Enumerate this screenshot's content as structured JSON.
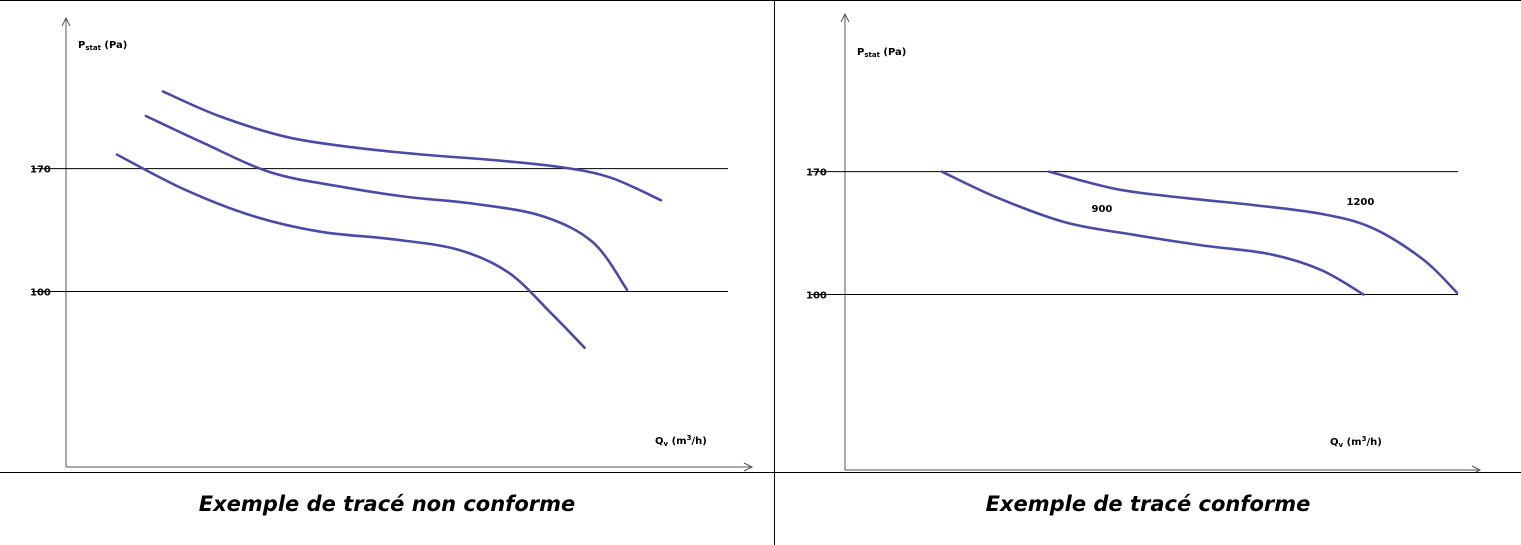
{
  "chart_data": [
    {
      "type": "line",
      "caption": "Exemple de tracé non conforme",
      "ylabel_main": "P",
      "ylabel_sub": "stat",
      "ylabel_unit": " (Pa)",
      "xlabel_main": "Q",
      "xlabel_sub": "v",
      "xlabel_unit_pre": " (m",
      "xlabel_unit_sup": "3",
      "xlabel_unit_post": "/h)",
      "reference_lines": [
        {
          "value": 170,
          "label": "170"
        },
        {
          "value": 100,
          "label": "100"
        }
      ],
      "series": [
        {
          "values": [
            [
              0.57,
              214
            ],
            [
              0.9,
              200
            ],
            [
              1.3,
              188
            ],
            [
              1.7,
              182
            ],
            [
              2.1,
              178
            ],
            [
              2.5,
              175
            ],
            [
              2.9,
              171
            ],
            [
              3.2,
              165
            ],
            [
              3.5,
              152
            ]
          ]
        },
        {
          "values": [
            [
              0.47,
              200
            ],
            [
              0.8,
              185
            ],
            [
              1.2,
              168
            ],
            [
              1.6,
              160
            ],
            [
              2.0,
              154
            ],
            [
              2.4,
              150
            ],
            [
              2.8,
              143
            ],
            [
              3.1,
              128
            ],
            [
              3.3,
              101
            ]
          ]
        },
        {
          "values": [
            [
              0.3,
              178
            ],
            [
              0.7,
              158
            ],
            [
              1.1,
              143
            ],
            [
              1.5,
              134
            ],
            [
              1.9,
              130
            ],
            [
              2.3,
              124
            ],
            [
              2.6,
              111
            ],
            [
              2.85,
              88
            ],
            [
              3.05,
              68
            ]
          ]
        }
      ],
      "series_labels": [],
      "color": "#4a4ba8"
    },
    {
      "type": "line",
      "caption": "Exemple de tracé conforme",
      "ylabel_main": "P",
      "ylabel_sub": "stat",
      "ylabel_unit": " (Pa)",
      "xlabel_main": "Q",
      "xlabel_sub": "v",
      "xlabel_unit_pre": " (m",
      "xlabel_unit_sup": "3",
      "xlabel_unit_post": "/h)",
      "reference_lines": [
        {
          "value": 170,
          "label": "170"
        },
        {
          "value": 100,
          "label": "100"
        }
      ],
      "series": [
        {
          "name": "900",
          "values": [
            [
              0.57,
              170
            ],
            [
              0.9,
              155
            ],
            [
              1.3,
              141
            ],
            [
              1.7,
              134
            ],
            [
              2.1,
              128
            ],
            [
              2.5,
              123
            ],
            [
              2.8,
              114
            ],
            [
              3.05,
              100
            ]
          ]
        },
        {
          "name": "1200",
          "values": [
            [
              1.2,
              170
            ],
            [
              1.6,
              160
            ],
            [
              2.0,
              155
            ],
            [
              2.4,
              151
            ],
            [
              2.8,
              146
            ],
            [
              3.1,
              138
            ],
            [
              3.4,
              120
            ],
            [
              3.6,
              101
            ]
          ]
        }
      ],
      "series_labels": [
        {
          "text": "900",
          "at": [
            1.45,
            147
          ]
        },
        {
          "text": "1200",
          "at": [
            2.95,
            151
          ]
        }
      ],
      "color": "#4a4ba8"
    }
  ]
}
